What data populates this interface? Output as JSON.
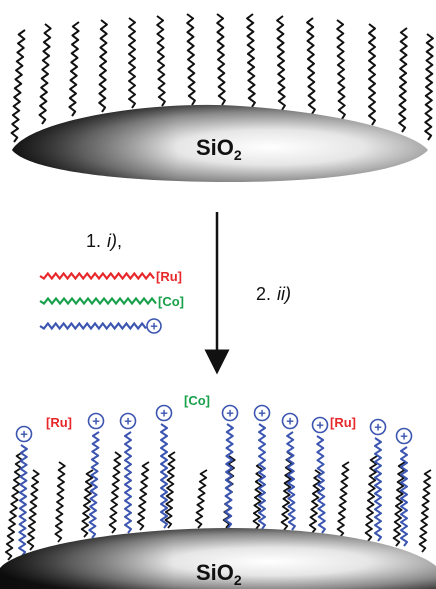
{
  "colors": {
    "chain": "#111111",
    "ru": "#e8272a",
    "co": "#18a04a",
    "cation": "#3b55b0"
  },
  "top": {
    "substrate": {
      "main": "SiO",
      "sub": "2"
    }
  },
  "steps": {
    "step1": {
      "num": "1.",
      "text": "i)",
      "suffix": ","
    },
    "step2": {
      "num": "2.",
      "text": "ii)"
    }
  },
  "legend": {
    "ru": "[Ru]",
    "co": "[Co]",
    "cation": "+"
  },
  "bottom": {
    "substrate": {
      "main": "SiO",
      "sub": "2"
    },
    "ru": "[Ru]",
    "co": "[Co]",
    "cation": "+"
  }
}
